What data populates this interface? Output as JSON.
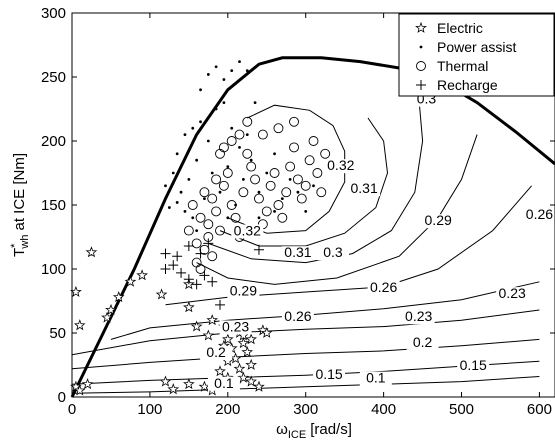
{
  "chart_data": {
    "type": "scatter",
    "xlabel_main": "ω",
    "xlabel_sub": "ICE",
    "xlabel_unit": "[rad/s]",
    "ylabel_main": "T",
    "ylabel_sup": "*",
    "ylabel_sub": "wh",
    "ylabel_rest": "at ICE [Nm]",
    "xlim": [
      0,
      620
    ],
    "ylim": [
      0,
      300
    ],
    "xticks": [
      0,
      100,
      200,
      300,
      400,
      500,
      600
    ],
    "yticks": [
      0,
      50,
      100,
      150,
      200,
      250,
      300
    ],
    "grid": false,
    "legend_position": "top-right",
    "legend": [
      {
        "marker": "star",
        "label": "Electric"
      },
      {
        "marker": "dot",
        "label": "Power assist"
      },
      {
        "marker": "circle",
        "label": "Thermal"
      },
      {
        "marker": "plus",
        "label": "Recharge"
      }
    ],
    "max_torque_curve": [
      [
        0,
        0
      ],
      [
        40,
        50
      ],
      [
        80,
        100
      ],
      [
        120,
        155
      ],
      [
        160,
        205
      ],
      [
        200,
        240
      ],
      [
        240,
        260
      ],
      [
        270,
        265
      ],
      [
        320,
        265
      ],
      [
        370,
        262
      ],
      [
        420,
        257
      ],
      [
        470,
        248
      ],
      [
        520,
        230
      ],
      [
        570,
        207
      ],
      [
        620,
        182
      ]
    ],
    "contours": [
      {
        "level": "0.1",
        "label_x": 195,
        "label_y": 8,
        "points": [
          [
            0,
            3
          ],
          [
            100,
            4
          ],
          [
            200,
            6
          ],
          [
            300,
            8
          ],
          [
            400,
            10
          ],
          [
            500,
            12
          ],
          [
            600,
            16
          ]
        ]
      },
      {
        "level": "0.1",
        "label_x": 390,
        "label_y": 12,
        "points": []
      },
      {
        "level": "0.15",
        "label_x": 330,
        "label_y": 15,
        "points": [
          [
            0,
            10
          ],
          [
            100,
            13
          ],
          [
            200,
            15
          ],
          [
            300,
            17
          ],
          [
            400,
            20
          ],
          [
            500,
            24
          ],
          [
            600,
            28
          ]
        ]
      },
      {
        "level": "0.15",
        "label_x": 515,
        "label_y": 22,
        "points": []
      },
      {
        "level": "0.2",
        "label_x": 185,
        "label_y": 32,
        "points": [
          [
            0,
            22
          ],
          [
            100,
            27
          ],
          [
            200,
            31
          ],
          [
            300,
            34
          ],
          [
            400,
            36
          ],
          [
            500,
            40
          ],
          [
            600,
            45
          ]
        ]
      },
      {
        "level": "0.2",
        "label_x": 450,
        "label_y": 40,
        "points": []
      },
      {
        "level": "0.23",
        "label_x": 210,
        "label_y": 52,
        "points": [
          [
            0,
            33
          ],
          [
            100,
            44
          ],
          [
            200,
            50
          ],
          [
            300,
            53
          ],
          [
            400,
            55
          ],
          [
            500,
            60
          ],
          [
            600,
            68
          ]
        ]
      },
      {
        "level": "0.23",
        "label_x": 445,
        "label_y": 60,
        "points": []
      },
      {
        "level": "0.23",
        "label_x": 565,
        "label_y": 78,
        "points": []
      },
      {
        "level": "0.26",
        "label_x": 290,
        "label_y": 60,
        "points": [
          [
            50,
            45
          ],
          [
            100,
            54
          ],
          [
            200,
            60
          ],
          [
            300,
            64
          ],
          [
            400,
            69
          ],
          [
            500,
            76
          ],
          [
            600,
            90
          ]
        ]
      },
      {
        "level": "0.26",
        "label_x": 400,
        "label_y": 83,
        "points": [
          [
            120,
            72
          ],
          [
            200,
            78
          ],
          [
            300,
            82
          ],
          [
            400,
            86
          ],
          [
            470,
            100
          ],
          [
            540,
            130
          ],
          [
            590,
            165
          ]
        ]
      },
      {
        "level": "0.26",
        "label_x": 600,
        "label_y": 140,
        "points": []
      },
      {
        "level": "0.29",
        "label_x": 220,
        "label_y": 80,
        "points": [
          [
            160,
            105
          ],
          [
            200,
            93
          ],
          [
            260,
            88
          ],
          [
            340,
            93
          ],
          [
            420,
            110
          ],
          [
            470,
            140
          ],
          [
            500,
            170
          ],
          [
            520,
            205
          ]
        ]
      },
      {
        "level": "0.29",
        "label_x": 470,
        "label_y": 135,
        "points": []
      },
      {
        "level": "0.3",
        "label_x": 335,
        "label_y": 110,
        "points": [
          [
            175,
            120
          ],
          [
            230,
            108
          ],
          [
            300,
            105
          ],
          [
            360,
            112
          ],
          [
            410,
            130
          ],
          [
            440,
            160
          ],
          [
            450,
            200
          ],
          [
            445,
            235
          ]
        ]
      },
      {
        "level": "0.3",
        "label_x": 455,
        "label_y": 230,
        "points": []
      },
      {
        "level": "0.31",
        "label_x": 290,
        "label_y": 110,
        "points": [
          [
            190,
            130
          ],
          [
            240,
            118
          ],
          [
            300,
            118
          ],
          [
            350,
            128
          ],
          [
            390,
            148
          ],
          [
            405,
            175
          ],
          [
            400,
            200
          ],
          [
            380,
            218
          ]
        ]
      },
      {
        "level": "0.31",
        "label_x": 375,
        "label_y": 160,
        "points": []
      },
      {
        "level": "0.32",
        "label_x": 225,
        "label_y": 127,
        "points": [
          [
            200,
            140
          ],
          [
            250,
            128
          ],
          [
            300,
            130
          ],
          [
            330,
            145
          ],
          [
            350,
            168
          ],
          [
            350,
            192
          ],
          [
            335,
            212
          ],
          [
            305,
            224
          ],
          [
            260,
            228
          ],
          [
            225,
            218
          ]
        ]
      },
      {
        "level": "0.32",
        "label_x": 345,
        "label_y": 178,
        "points": []
      }
    ],
    "series": [
      {
        "name": "Electric",
        "marker": "star",
        "points": [
          [
            5,
            8
          ],
          [
            10,
            5
          ],
          [
            20,
            10
          ],
          [
            25,
            113
          ],
          [
            5,
            82
          ],
          [
            10,
            56
          ],
          [
            45,
            62
          ],
          [
            50,
            68
          ],
          [
            60,
            78
          ],
          [
            75,
            90
          ],
          [
            90,
            95
          ],
          [
            115,
            80
          ],
          [
            150,
            88
          ],
          [
            150,
            70
          ],
          [
            160,
            55
          ],
          [
            175,
            48
          ],
          [
            180,
            60
          ],
          [
            195,
            55
          ],
          [
            200,
            45
          ],
          [
            205,
            38
          ],
          [
            210,
            30
          ],
          [
            215,
            50
          ],
          [
            220,
            42
          ],
          [
            225,
            35
          ],
          [
            230,
            25
          ],
          [
            190,
            20
          ],
          [
            200,
            15
          ],
          [
            210,
            10
          ],
          [
            220,
            15
          ],
          [
            230,
            12
          ],
          [
            240,
            8
          ],
          [
            170,
            8
          ],
          [
            150,
            10
          ],
          [
            120,
            12
          ],
          [
            130,
            6
          ],
          [
            180,
            5
          ],
          [
            200,
            28
          ],
          [
            215,
            22
          ],
          [
            230,
            45
          ],
          [
            245,
            52
          ],
          [
            250,
            50
          ],
          [
            185,
            35
          ],
          [
            195,
            40
          ],
          [
            210,
            53
          ],
          [
            220,
            48
          ]
        ]
      },
      {
        "name": "Power assist",
        "marker": "dot",
        "points": [
          [
            130,
            175
          ],
          [
            135,
            190
          ],
          [
            140,
            160
          ],
          [
            150,
            170
          ],
          [
            160,
            185
          ],
          [
            170,
            155
          ],
          [
            180,
            175
          ],
          [
            190,
            160
          ],
          [
            200,
            180
          ],
          [
            210,
            150
          ],
          [
            220,
            170
          ],
          [
            230,
            185
          ],
          [
            240,
            160
          ],
          [
            250,
            175
          ],
          [
            260,
            190
          ],
          [
            270,
            155
          ],
          [
            280,
            170
          ],
          [
            290,
            160
          ],
          [
            300,
            145
          ],
          [
            310,
            165
          ],
          [
            145,
            205
          ],
          [
            155,
            210
          ],
          [
            165,
            215
          ],
          [
            175,
            200
          ],
          [
            185,
            225
          ],
          [
            195,
            230
          ],
          [
            205,
            210
          ],
          [
            215,
            195
          ],
          [
            225,
            205
          ],
          [
            235,
            230
          ],
          [
            165,
            240
          ],
          [
            175,
            252
          ],
          [
            185,
            258
          ],
          [
            195,
            248
          ],
          [
            205,
            255
          ],
          [
            215,
            262
          ],
          [
            225,
            255
          ],
          [
            120,
            165
          ],
          [
            125,
            148
          ],
          [
            135,
            152
          ],
          [
            145,
            145
          ],
          [
            155,
            140
          ],
          [
            160,
            130
          ],
          [
            200,
            140
          ],
          [
            240,
            140
          ],
          [
            260,
            145
          ]
        ]
      },
      {
        "name": "Thermal",
        "marker": "circle",
        "points": [
          [
            150,
            130
          ],
          [
            155,
            150
          ],
          [
            160,
            120
          ],
          [
            160,
            105
          ],
          [
            165,
            140
          ],
          [
            170,
            160
          ],
          [
            175,
            125
          ],
          [
            180,
            110
          ],
          [
            185,
            145
          ],
          [
            190,
            130
          ],
          [
            195,
            165
          ],
          [
            200,
            175
          ],
          [
            205,
            150
          ],
          [
            210,
            140
          ],
          [
            215,
            125
          ],
          [
            220,
            160
          ],
          [
            225,
            190
          ],
          [
            230,
            180
          ],
          [
            235,
            170
          ],
          [
            240,
            155
          ],
          [
            245,
            135
          ],
          [
            250,
            145
          ],
          [
            255,
            165
          ],
          [
            260,
            175
          ],
          [
            265,
            150
          ],
          [
            270,
            140
          ],
          [
            275,
            160
          ],
          [
            280,
            180
          ],
          [
            285,
            195
          ],
          [
            290,
            170
          ],
          [
            295,
            155
          ],
          [
            300,
            165
          ],
          [
            305,
            185
          ],
          [
            310,
            200
          ],
          [
            315,
            175
          ],
          [
            320,
            160
          ],
          [
            325,
            190
          ],
          [
            195,
            195
          ],
          [
            205,
            200
          ],
          [
            215,
            205
          ],
          [
            225,
            215
          ],
          [
            245,
            205
          ],
          [
            265,
            210
          ],
          [
            285,
            215
          ],
          [
            165,
            100
          ],
          [
            170,
            115
          ],
          [
            175,
            135
          ],
          [
            180,
            155
          ],
          [
            185,
            170
          ],
          [
            190,
            190
          ]
        ]
      },
      {
        "name": "Recharge",
        "marker": "plus",
        "points": [
          [
            120,
            100
          ],
          [
            130,
            103
          ],
          [
            140,
            97
          ],
          [
            150,
            92
          ],
          [
            160,
            88
          ],
          [
            170,
            95
          ],
          [
            180,
            90
          ],
          [
            190,
            72
          ],
          [
            120,
            112
          ],
          [
            135,
            110
          ],
          [
            150,
            118
          ],
          [
            165,
            112
          ],
          [
            175,
            120
          ],
          [
            240,
            115
          ]
        ]
      }
    ]
  }
}
